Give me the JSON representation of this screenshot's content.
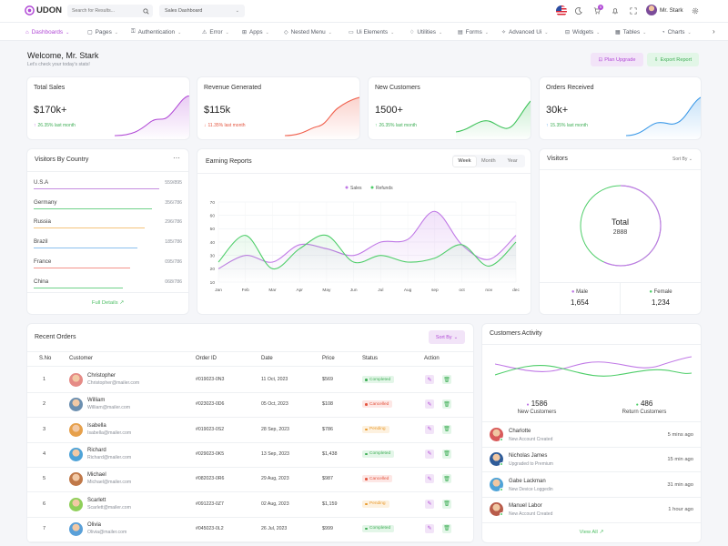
{
  "header": {
    "logo_text": "UDON",
    "search_placeholder": "Search for Results...",
    "dashboard_select": "Sales Dashboard",
    "cart_badge": "5",
    "user_name": "Mr. Stark"
  },
  "nav": {
    "items": [
      {
        "label": "Dashboards",
        "icon": "home-icon"
      },
      {
        "label": "Pages",
        "icon": "file-icon"
      },
      {
        "label": "Authentication",
        "icon": "key-icon"
      },
      {
        "label": "Error",
        "icon": "warning-icon"
      },
      {
        "label": "Apps",
        "icon": "grid-icon"
      },
      {
        "label": "Nested Menu",
        "icon": "layers-icon"
      },
      {
        "label": "Ui Elements",
        "icon": "box-icon"
      },
      {
        "label": "Utilities",
        "icon": "bulb-icon"
      },
      {
        "label": "Forms",
        "icon": "form-icon"
      },
      {
        "label": "Advanced Ui",
        "icon": "sparkle-icon"
      },
      {
        "label": "Widgets",
        "icon": "widget-icon"
      },
      {
        "label": "Tables",
        "icon": "table-icon"
      },
      {
        "label": "Charts",
        "icon": "chart-icon"
      }
    ]
  },
  "welcome": {
    "title": "Welcome, Mr. Stark",
    "subtitle": "Let's check your today's stats!",
    "plan_upgrade": "Plan Upgrade",
    "export_report": "Export Report"
  },
  "stats": [
    {
      "title": "Total Sales",
      "value": "$170k+",
      "change": "26.35% last month",
      "direction": "up",
      "color": "#b14ad6"
    },
    {
      "title": "Revenue Generated",
      "value": "$115k",
      "change": "11.35% last month",
      "direction": "down",
      "color": "#f0604d"
    },
    {
      "title": "New Customers",
      "value": "1500+",
      "change": "26.35% last month",
      "direction": "up",
      "color": "#3fc35b"
    },
    {
      "title": "Orders Received",
      "value": "30k+",
      "change": "15.35% last month",
      "direction": "up",
      "color": "#3d9ae8"
    }
  ],
  "visitors_by_country": {
    "title": "Visitors By Country",
    "countries": [
      {
        "name": "U.S.A",
        "value": "559/895",
        "color": "#c58ee0"
      },
      {
        "name": "Germany",
        "value": "356/786",
        "color": "#6fd28a"
      },
      {
        "name": "Russia",
        "value": "296/786",
        "color": "#f4c27a"
      },
      {
        "name": "Brazil",
        "value": "185/786",
        "color": "#8ac0ef"
      },
      {
        "name": "France",
        "value": "095/786",
        "color": "#f3938a"
      },
      {
        "name": "China",
        "value": "068/786",
        "color": "#6fd28a"
      }
    ],
    "full_details": "Full Details"
  },
  "earning_reports": {
    "title": "Earning Reports",
    "tabs": [
      "Week",
      "Month",
      "Year"
    ],
    "active_tab": "Week"
  },
  "chart_data": {
    "type": "line",
    "title": "Earning Reports",
    "categories": [
      "Jan",
      "Feb",
      "Mar",
      "Apr",
      "May",
      "Jun",
      "Jul",
      "Aug",
      "sep",
      "oct",
      "nov",
      "dec"
    ],
    "series": [
      {
        "name": "Sales",
        "color": "#c079e6",
        "values": [
          20,
          30,
          25,
          38,
          35,
          30,
          40,
          42,
          63,
          38,
          27,
          45
        ]
      },
      {
        "name": "Refunds",
        "color": "#4fce6a",
        "values": [
          25,
          45,
          20,
          35,
          45,
          25,
          30,
          25,
          28,
          38,
          22,
          40
        ]
      }
    ],
    "yticks": [
      10,
      20,
      30,
      40,
      50,
      60,
      70
    ],
    "ylim": [
      10,
      70
    ],
    "legend": "top-center",
    "grid": true
  },
  "visitors": {
    "title": "Visitors",
    "sort_by": "Sort By",
    "total_label": "Total",
    "total_value": "2888",
    "male_label": "Male",
    "male_value": "1,654",
    "female_label": "Female",
    "female_value": "1,234"
  },
  "recent_orders": {
    "title": "Recent Orders",
    "sort_by": "Sort By",
    "columns": [
      "S.No",
      "Customer",
      "Order ID",
      "Date",
      "Price",
      "Status",
      "Action"
    ],
    "rows": [
      {
        "sno": "1",
        "name": "Christopher",
        "email": "Christopher@mailer.com",
        "order_id": "#019023-0N3",
        "date": "11 Oct, 2023",
        "price": "$569",
        "status": "Completed"
      },
      {
        "sno": "2",
        "name": "William",
        "email": "William@mailer.com",
        "order_id": "#023023-0D6",
        "date": "05 Oct, 2023",
        "price": "$108",
        "status": "Cancelled"
      },
      {
        "sno": "3",
        "name": "Isabella",
        "email": "Isabella@mailer.com",
        "order_id": "#019023-0S2",
        "date": "28 Sep, 2023",
        "price": "$786",
        "status": "Pending"
      },
      {
        "sno": "4",
        "name": "Richard",
        "email": "Richard@mailer.com",
        "order_id": "#029023-0K5",
        "date": "13 Sep, 2023",
        "price": "$1,438",
        "status": "Completed"
      },
      {
        "sno": "5",
        "name": "Michael",
        "email": "Michael@mailer.com",
        "order_id": "#082023-0R6",
        "date": "29 Aug, 2023",
        "price": "$987",
        "status": "Cancelled"
      },
      {
        "sno": "6",
        "name": "Scarlett",
        "email": "Scarlett@mailer.com",
        "order_id": "#091223-0Z7",
        "date": "02 Aug, 2023",
        "price": "$1,159",
        "status": "Pending"
      },
      {
        "sno": "7",
        "name": "Olivia",
        "email": "Olivia@mailer.com",
        "order_id": "#045023-0L2",
        "date": "26 Jul, 2023",
        "price": "$999",
        "status": "Completed"
      }
    ]
  },
  "customers_activity": {
    "title": "Customers Activity",
    "new_customers_value": "1586",
    "new_customers_label": "New Customers",
    "return_customers_value": "486",
    "return_customers_label": "Return Customers",
    "activities": [
      {
        "name": "Charlotte",
        "desc": "New Account Created",
        "time": "5 mins ago"
      },
      {
        "name": "Nicholas James",
        "desc": "Upgraded to Premium",
        "time": "15 min ago"
      },
      {
        "name": "Gabe Lackman",
        "desc": "New Device Loggedin",
        "time": "31 min ago"
      },
      {
        "name": "Manuel Labor",
        "desc": "New Account Created",
        "time": "1 hour ago"
      }
    ],
    "view_all": "View All"
  }
}
